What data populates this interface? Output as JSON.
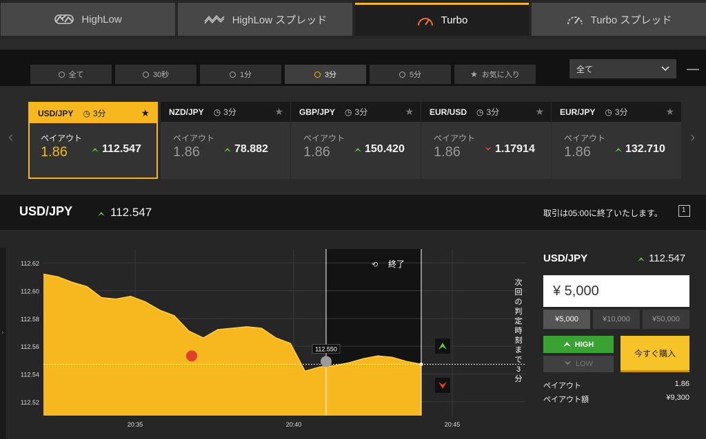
{
  "top_tabs": [
    {
      "label": "HighLow",
      "icon": "highlow-icon",
      "active": false
    },
    {
      "label": "HighLow スプレッド",
      "icon": "highlow-spread-icon",
      "active": false
    },
    {
      "label": "Turbo",
      "icon": "speedometer-icon",
      "active": true
    },
    {
      "label": "Turbo スプレッド",
      "icon": "speedometer-dashed-icon",
      "active": false
    }
  ],
  "sub_tabs": [
    {
      "label": "全て",
      "active": false
    },
    {
      "label": "30秒",
      "active": false
    },
    {
      "label": "1分",
      "active": false
    },
    {
      "label": "3分",
      "active": true
    },
    {
      "label": "5分",
      "active": false
    },
    {
      "label": "お気に入り",
      "active": false
    }
  ],
  "filter_select": {
    "value": "全て"
  },
  "assets": [
    {
      "pair": "USD/JPY",
      "duration": "3分",
      "payout_label": "ペイアウト",
      "payout": "1.86",
      "rate": "112.547",
      "direction": "up",
      "selected": true
    },
    {
      "pair": "NZD/JPY",
      "duration": "3分",
      "payout_label": "ペイアウト",
      "payout": "1.86",
      "rate": "78.882",
      "direction": "up",
      "selected": false
    },
    {
      "pair": "GBP/JPY",
      "duration": "3分",
      "payout_label": "ペイアウト",
      "payout": "1.86",
      "rate": "150.420",
      "direction": "up",
      "selected": false
    },
    {
      "pair": "EUR/USD",
      "duration": "3分",
      "payout_label": "ペイアウト",
      "payout": "1.86",
      "rate": "1.17914",
      "direction": "down",
      "selected": false
    },
    {
      "pair": "EUR/JPY",
      "duration": "3分",
      "payout_label": "ペイアウト",
      "payout": "1.86",
      "rate": "132.710",
      "direction": "up",
      "selected": false
    }
  ],
  "info_bar": {
    "symbol": "USD/JPY",
    "rate": "112.547",
    "end_note": "取引は05:00に終了いたします。",
    "window_icon_label": "1"
  },
  "chart": {
    "end_label": "終了",
    "marker_label": "112.550",
    "countdown_text": "次回の判定時刻まで",
    "countdown_value": "3",
    "countdown_unit": "分"
  },
  "chart_data": {
    "type": "area",
    "x_ticks": [
      "20:35",
      "20:40",
      "20:45"
    ],
    "y_ticks": [
      "112.62",
      "112.60",
      "112.58",
      "112.56",
      "112.54",
      "112.52"
    ],
    "ylim": [
      112.51,
      112.63
    ],
    "series": [
      {
        "values": [
          112.612,
          112.61,
          112.606,
          112.603,
          112.595,
          112.594,
          112.596,
          112.592,
          112.586,
          112.582,
          112.571,
          112.566,
          112.572,
          112.573,
          112.574,
          112.573,
          112.566,
          112.562,
          112.542,
          112.545,
          112.546,
          112.548,
          112.551,
          112.553,
          112.552,
          112.549,
          112.547
        ]
      }
    ],
    "current_value": 112.547,
    "strike_value": 112.55
  },
  "trade_panel": {
    "symbol": "USD/JPY",
    "rate": "112.547",
    "amount": "¥ 5,000",
    "quick_amounts": [
      {
        "label": "¥5,000",
        "active": true
      },
      {
        "label": "¥10,000",
        "active": false
      },
      {
        "label": "¥50,000",
        "active": false
      }
    ],
    "high_label": "HIGH",
    "low_label": "LOW",
    "buy_label": "今すぐ購入",
    "payout_label": "ペイアウト",
    "payout_value": "1.86",
    "payout_amount_label": "ペイアウト額",
    "payout_amount_value": "¥9,300"
  },
  "colors": {
    "accent": "#f6b81e",
    "up": "#6fc045",
    "down": "#e0402a",
    "high": "#3aa233"
  }
}
